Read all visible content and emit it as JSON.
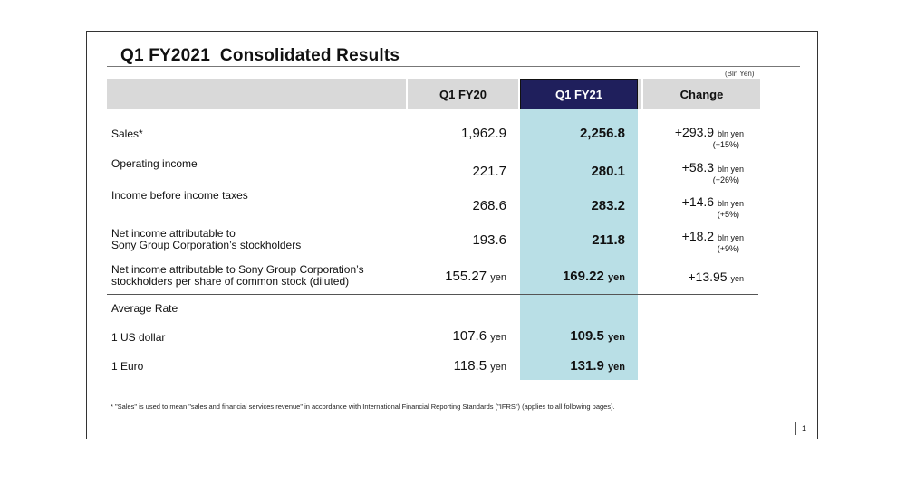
{
  "slide": {
    "title": "Q1 FY2021  Consolidated Results",
    "units": "(Bln Yen)",
    "page_number": "1",
    "footnote": "* \"Sales\" is used to mean \"sales and financial services revenue\" in accordance with International Financial Reporting Standards (\"IFRS\") (applies to all following pages)."
  },
  "table": {
    "headers": {
      "fy20": "Q1 FY20",
      "fy21": "Q1 FY21",
      "change": "Change"
    },
    "rows": {
      "sales": {
        "label": "Sales*",
        "fy20": "1,962.9",
        "fy21": "2,256.8",
        "change": "+293.9",
        "change_unit": "bln yen",
        "change_pct": "(+15%)"
      },
      "op_income": {
        "label": "Operating income",
        "fy20": "221.7",
        "fy21": "280.1",
        "change": "+58.3",
        "change_unit": "bln yen",
        "change_pct": "(+26%)"
      },
      "pretax": {
        "label": "Income before income taxes",
        "fy20": "268.6",
        "fy21": "283.2",
        "change": "+14.6",
        "change_unit": "bln yen",
        "change_pct": "(+5%)"
      },
      "net_income": {
        "label_line1": "Net income attributable to",
        "label_line2": "Sony Group Corporation’s stockholders",
        "fy20": "193.6",
        "fy21": "211.8",
        "change": "+18.2",
        "change_unit": "bln yen",
        "change_pct": "(+9%)"
      },
      "eps": {
        "label_line1": "Net income attributable to Sony Group Corporation’s",
        "label_line2": "stockholders per share of common stock (diluted)",
        "fy20": "155.27",
        "fy20_unit": "yen",
        "fy21": "169.22",
        "fy21_unit": "yen",
        "change": "+13.95",
        "change_unit": "yen"
      }
    },
    "rates": {
      "heading": "Average Rate",
      "usd": {
        "label": "1 US dollar",
        "fy20": "107.6",
        "fy20_unit": "yen",
        "fy21": "109.5",
        "fy21_unit": "yen"
      },
      "eur": {
        "label": "1 Euro",
        "fy20": "118.5",
        "fy20_unit": "yen",
        "fy21": "131.9",
        "fy21_unit": "yen"
      }
    }
  }
}
